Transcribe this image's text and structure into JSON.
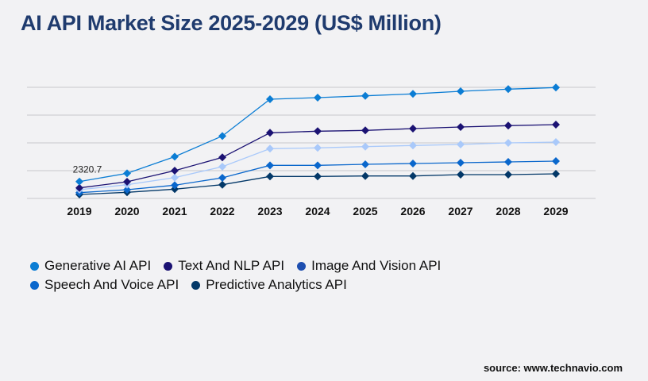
{
  "title": "AI API Market Size 2025-2029 (US$ Million)",
  "source": "source: www.technavio.com",
  "chart_data": {
    "type": "line",
    "title": "AI API Market Size 2025-2029 (US$ Million)",
    "xlabel": "",
    "ylabel": "",
    "categories": [
      "2019",
      "2020",
      "2021",
      "2022",
      "2023",
      "2024",
      "2025",
      "2026",
      "2027",
      "2028",
      "2029"
    ],
    "ylim": [
      0,
      15260
    ],
    "grid": true,
    "legend_position": "bottom-left",
    "annotations": [
      {
        "series": "Generative AI API",
        "x": "2019",
        "label": "2320.7"
      }
    ],
    "series": [
      {
        "name": "Generative AI API",
        "color": "#0b7dd4",
        "legend_color": "#0b7dd4",
        "values": [
          2321,
          3451,
          5740,
          8575,
          13625,
          13843,
          14094,
          14355,
          14715,
          15009,
          15227
        ]
      },
      {
        "name": "Text And NLP API",
        "color": "#1b1273",
        "legend_color": "#1b1273",
        "values": [
          1450,
          2289,
          3815,
          5638,
          9015,
          9233,
          9342,
          9592,
          9810,
          9995,
          10137
        ]
      },
      {
        "name": "Image And Vision API",
        "color": "#a9c9fa",
        "legend_color": "#1e4fb0",
        "values": [
          1199,
          1886,
          2866,
          4360,
          6834,
          6943,
          7118,
          7270,
          7412,
          7630,
          7739
        ]
      },
      {
        "name": "Speech And Voice API",
        "color": "#0a67cc",
        "legend_color": "#0a67cc",
        "values": [
          796,
          1199,
          1817,
          2834,
          4542,
          4542,
          4687,
          4796,
          4905,
          5014,
          5123
        ]
      },
      {
        "name": "Predictive Analytics API",
        "color": "#033868",
        "legend_color": "#033868",
        "values": [
          545,
          840,
          1276,
          1886,
          3019,
          3019,
          3085,
          3085,
          3270,
          3270,
          3379
        ]
      }
    ]
  }
}
